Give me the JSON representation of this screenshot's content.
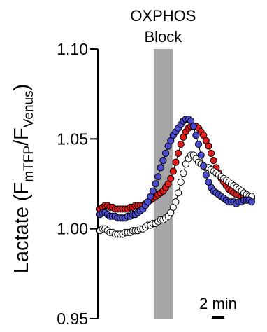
{
  "chart_data": {
    "type": "scatter",
    "title": "",
    "ylabel": {
      "prefix": "Lactate (F",
      "num_sub": "mTFP",
      "slash": "/F",
      "den_sub": "Venus",
      "suffix": ")"
    },
    "xlabel": "",
    "ylim": [
      0.95,
      1.1
    ],
    "yticks": [
      {
        "value": 0.95,
        "label": "0.95"
      },
      {
        "value": 1.0,
        "label": "1.00"
      },
      {
        "value": 1.05,
        "label": "1.05"
      },
      {
        "value": 1.1,
        "label": "1.10"
      }
    ],
    "xlim": [
      0,
      26
    ],
    "x_unit": "min",
    "grid": false,
    "legend": "none",
    "block_annotation": {
      "line1": "OXPHOS",
      "line2": "Block",
      "x_start": 8.5,
      "x_end": 11.5,
      "color": "#a6a6a8"
    },
    "scale_bar": {
      "label": "2 min",
      "length": 2
    },
    "series": [
      {
        "color": "#e01b1b",
        "edge": "#000000",
        "x": [
          0,
          0.4,
          0.8,
          1.2,
          1.6,
          2,
          2.4,
          2.8,
          3.2,
          3.6,
          4,
          4.4,
          4.8,
          5.2,
          5.6,
          6,
          6.4,
          6.8,
          7.2,
          7.6,
          8,
          8.4,
          8.8,
          9.2,
          9.6,
          10,
          10.4,
          10.8,
          11.2,
          11.6,
          12,
          12.4,
          12.8,
          13.2,
          13.6,
          14,
          14.4,
          14.8,
          15.2,
          15.6,
          16,
          16.4,
          16.8,
          17.2,
          17.6,
          18,
          18.4,
          18.8,
          19.2,
          19.6,
          20,
          20.4,
          20.8,
          21.2,
          21.6,
          22,
          22.4,
          22.8,
          23.2,
          23.6,
          24
        ],
        "y": [
          1.011,
          1.012,
          1.013,
          1.013,
          1.012,
          1.012,
          1.011,
          1.011,
          1.011,
          1.011,
          1.011,
          1.011,
          1.012,
          1.012,
          1.013,
          1.013,
          1.013,
          1.013,
          1.014,
          1.015,
          1.016,
          1.017,
          1.018,
          1.019,
          1.02,
          1.021,
          1.023,
          1.025,
          1.028,
          1.032,
          1.037,
          1.042,
          1.047,
          1.051,
          1.054,
          1.056,
          1.057,
          1.057,
          1.057,
          1.056,
          1.054,
          1.052,
          1.049,
          1.046,
          1.042,
          1.038,
          1.034,
          1.031,
          1.028,
          1.026,
          1.024,
          1.022,
          1.021,
          1.02,
          1.019,
          1.019,
          1.018,
          1.018,
          1.018,
          1.017,
          1.017
        ]
      },
      {
        "color": "#ffffff",
        "edge": "#000000",
        "x": [
          0,
          0.4,
          0.8,
          1.2,
          1.6,
          2,
          2.4,
          2.8,
          3.2,
          3.6,
          4,
          4.4,
          4.8,
          5.2,
          5.6,
          6,
          6.4,
          6.8,
          7.2,
          7.6,
          8,
          8.4,
          8.8,
          9.2,
          9.6,
          10,
          10.4,
          10.8,
          11.2,
          11.6,
          12,
          12.4,
          12.8,
          13.2,
          13.6,
          14,
          14.4,
          14.8,
          15.2,
          15.6,
          16,
          16.4,
          16.8,
          17.2,
          17.6,
          18,
          18.4,
          18.8,
          19.2,
          19.6,
          20,
          20.4,
          20.8,
          21.2,
          21.6,
          22,
          22.4,
          22.8,
          23.2,
          23.6,
          24
        ],
        "y": [
          0.999,
          1.0,
          1.0,
          0.999,
          0.998,
          0.998,
          0.997,
          0.997,
          0.997,
          0.997,
          0.998,
          0.998,
          0.998,
          0.999,
          0.999,
          0.999,
          1.0,
          1.0,
          1.001,
          1.002,
          1.002,
          1.003,
          1.003,
          1.004,
          1.005,
          1.005,
          1.006,
          1.007,
          1.009,
          1.012,
          1.015,
          1.02,
          1.026,
          1.031,
          1.036,
          1.039,
          1.041,
          1.041,
          1.039,
          1.037,
          1.036,
          1.035,
          1.034,
          1.034,
          1.033,
          1.032,
          1.031,
          1.03,
          1.029,
          1.028,
          1.027,
          1.026,
          1.025,
          1.024,
          1.023,
          1.022,
          1.021,
          1.02,
          1.019,
          1.018,
          1.018
        ]
      },
      {
        "color": "#4b4bd2",
        "edge": "#000000",
        "x": [
          0,
          0.4,
          0.8,
          1.2,
          1.6,
          2,
          2.4,
          2.8,
          3.2,
          3.6,
          4,
          4.4,
          4.8,
          5.2,
          5.6,
          6,
          6.4,
          6.8,
          7.2,
          7.6,
          8,
          8.4,
          8.8,
          9.2,
          9.6,
          10,
          10.4,
          10.8,
          11.2,
          11.6,
          12,
          12.4,
          12.8,
          13.2,
          13.6,
          14,
          14.4,
          14.8,
          15.2,
          15.6,
          16,
          16.4,
          16.8,
          17.2,
          17.6,
          18,
          18.4,
          18.8,
          19.2,
          19.6,
          20,
          20.4,
          20.8,
          21.2,
          21.6,
          22,
          22.4,
          22.8,
          23.2,
          23.6,
          24
        ],
        "y": [
          1.008,
          1.009,
          1.009,
          1.008,
          1.007,
          1.007,
          1.007,
          1.006,
          1.006,
          1.006,
          1.006,
          1.007,
          1.007,
          1.008,
          1.008,
          1.009,
          1.01,
          1.011,
          1.013,
          1.015,
          1.018,
          1.021,
          1.025,
          1.029,
          1.034,
          1.038,
          1.042,
          1.046,
          1.049,
          1.052,
          1.054,
          1.056,
          1.058,
          1.06,
          1.061,
          1.061,
          1.06,
          1.057,
          1.052,
          1.047,
          1.041,
          1.035,
          1.03,
          1.026,
          1.023,
          1.021,
          1.02,
          1.019,
          1.018,
          1.017,
          1.016,
          1.015,
          1.015,
          1.015,
          1.014,
          1.015,
          1.015,
          1.016,
          1.016,
          1.016,
          1.015
        ]
      }
    ]
  }
}
